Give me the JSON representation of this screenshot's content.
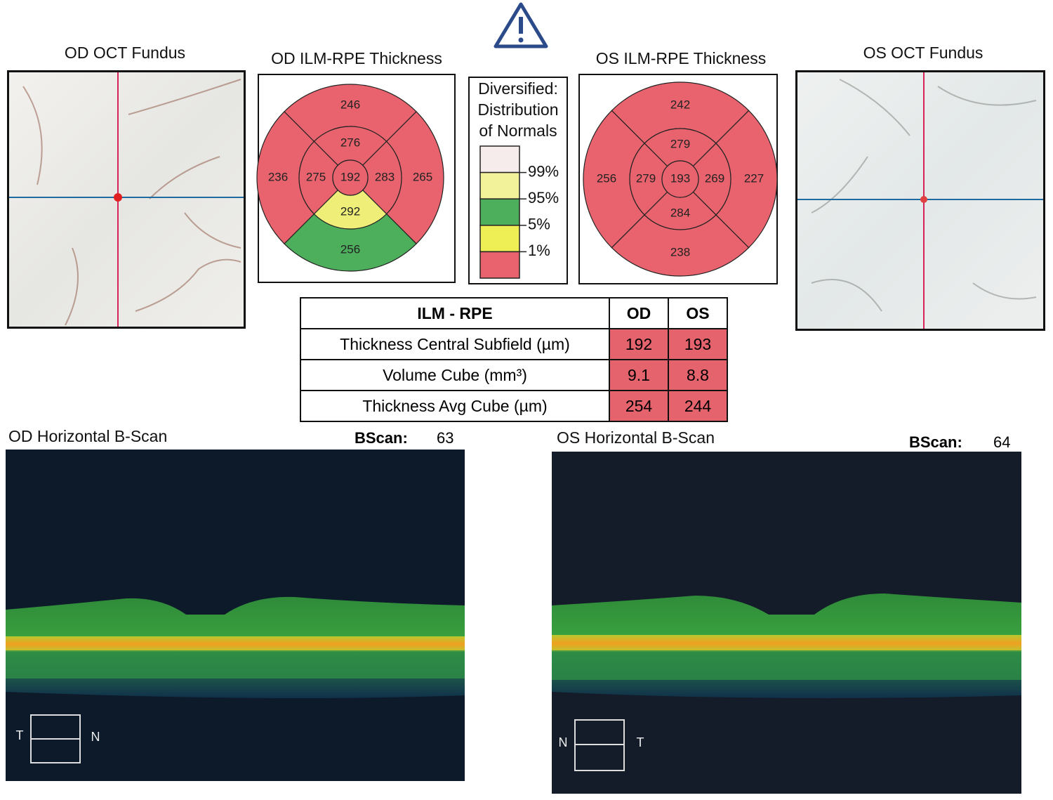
{
  "od_fundus": {
    "title": "OD OCT Fundus"
  },
  "os_fundus": {
    "title": "OS OCT Fundus"
  },
  "od_map": {
    "title": "OD ILM-RPE Thickness",
    "sectors": {
      "outer_top": {
        "value": 246,
        "color": "#e8636d"
      },
      "outer_left": {
        "value": 236,
        "color": "#e8636d"
      },
      "outer_right": {
        "value": 265,
        "color": "#e8636d"
      },
      "outer_bottom": {
        "value": 256,
        "color": "#4dae5c"
      },
      "inner_top": {
        "value": 276,
        "color": "#e8636d"
      },
      "inner_left": {
        "value": 275,
        "color": "#e8636d"
      },
      "inner_right": {
        "value": 283,
        "color": "#e8636d"
      },
      "inner_bottom": {
        "value": 292,
        "color": "#eeee78"
      },
      "center": {
        "value": 192,
        "color": "#e8636d"
      }
    }
  },
  "os_map": {
    "title": "OS ILM-RPE Thickness",
    "sectors": {
      "outer_top": {
        "value": 242,
        "color": "#e8636d"
      },
      "outer_left": {
        "value": 256,
        "color": "#e8636d"
      },
      "outer_right": {
        "value": 227,
        "color": "#e8636d"
      },
      "outer_bottom": {
        "value": 238,
        "color": "#e8636d"
      },
      "inner_top": {
        "value": 279,
        "color": "#e8636d"
      },
      "inner_left": {
        "value": 279,
        "color": "#e8636d"
      },
      "inner_right": {
        "value": 269,
        "color": "#e8636d"
      },
      "inner_bottom": {
        "value": 284,
        "color": "#e8636d"
      },
      "center": {
        "value": 193,
        "color": "#e8636d"
      }
    }
  },
  "legend": {
    "title_lines": [
      "Diversified:",
      "Distribution",
      "of Normals"
    ],
    "colors": [
      "#f7ecec",
      "#f2f29a",
      "#4dae5c",
      "#eeee55",
      "#e8636d"
    ],
    "labels": [
      "99%",
      "95%",
      "5%",
      "1%"
    ]
  },
  "table": {
    "header": [
      "ILM - RPE",
      "OD",
      "OS"
    ],
    "rows": [
      [
        "Thickness Central Subfield (µm)",
        192,
        193
      ],
      [
        "Volume Cube (mm³)",
        9.1,
        8.8
      ],
      [
        "Thickness Avg Cube (µm)",
        254,
        244
      ]
    ]
  },
  "od_bscan": {
    "title": "OD Horizontal B-Scan",
    "bscan_label": "BScan:",
    "bscan_number": 63,
    "left": "T",
    "right": "N"
  },
  "os_bscan": {
    "title": "OS Horizontal B-Scan",
    "bscan_label": "BScan:",
    "bscan_number": 64,
    "left": "N",
    "right": "T"
  }
}
